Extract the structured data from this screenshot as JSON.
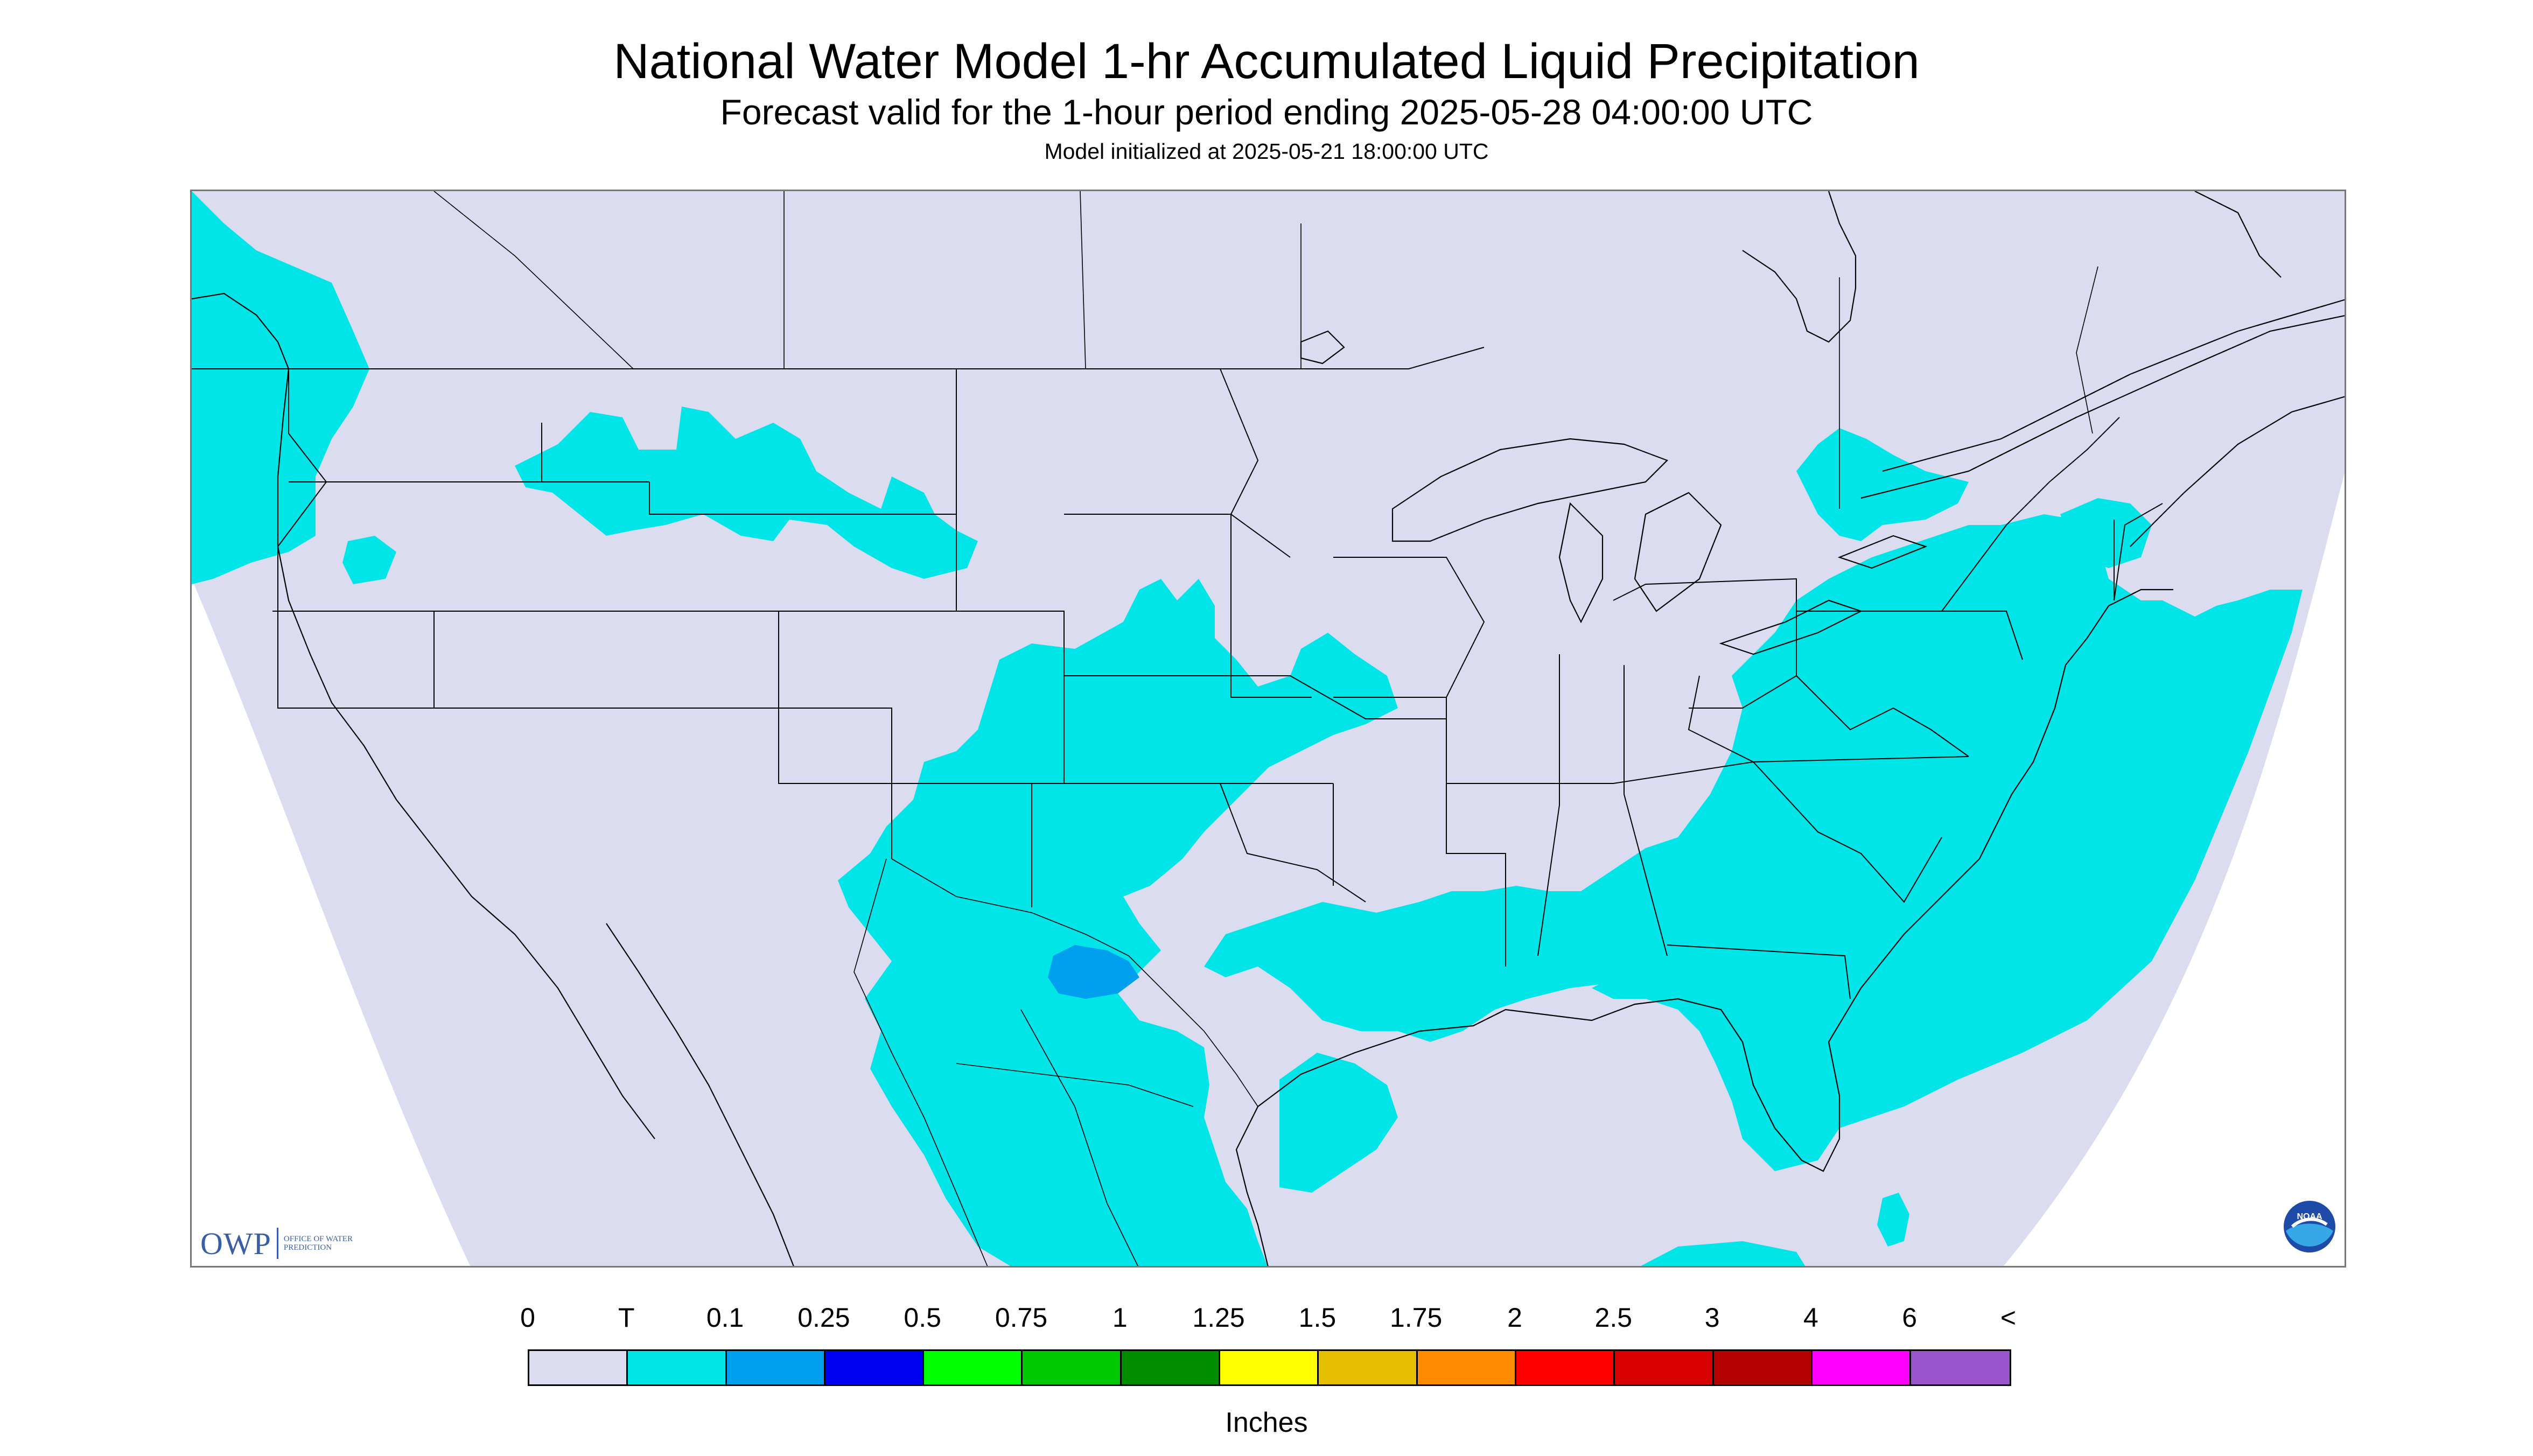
{
  "header": {
    "title": "National Water Model 1-hr Accumulated Liquid Precipitation",
    "subtitle": "Forecast valid for the 1-hour period ending 2025-05-28 04:00:00 UTC",
    "init_line": "Model initialized at 2025-05-21 18:00:00 UTC"
  },
  "legend": {
    "labels": [
      "0",
      "T",
      "0.1",
      "0.25",
      "0.5",
      "0.75",
      "1",
      "1.25",
      "1.5",
      "1.75",
      "2",
      "2.5",
      "3",
      "4",
      "6",
      "<"
    ],
    "colors": [
      "#dcdcf0",
      "#00e5e8",
      "#00a0ee",
      "#0000f0",
      "#00ff00",
      "#00c800",
      "#008c00",
      "#ffff00",
      "#e6c000",
      "#ff8c00",
      "#ff0000",
      "#d80000",
      "#b40000",
      "#ff00ff",
      "#9955cc"
    ],
    "units": "Inches"
  },
  "logos": {
    "owp_letters": "OWP",
    "owp_text": "OFFICE OF WATER PREDICTION",
    "noaa_text": "NOAA"
  },
  "map": {
    "background_color": "#dcdcf0",
    "outside_color": "#ffffff",
    "border_color": "#000000",
    "precip_regions": [
      {
        "name": "pacific-northwest",
        "level": "T"
      },
      {
        "name": "northern-rockies",
        "level": "T"
      },
      {
        "name": "southern-plains-southwest",
        "level": "T"
      },
      {
        "name": "west-texas",
        "level": "0.1"
      },
      {
        "name": "southeast-mid-atlantic",
        "level": "T"
      },
      {
        "name": "great-lakes-ontario",
        "level": "T"
      },
      {
        "name": "western-atlantic",
        "level": "T"
      },
      {
        "name": "gulf-of-mexico",
        "level": "T"
      }
    ]
  }
}
